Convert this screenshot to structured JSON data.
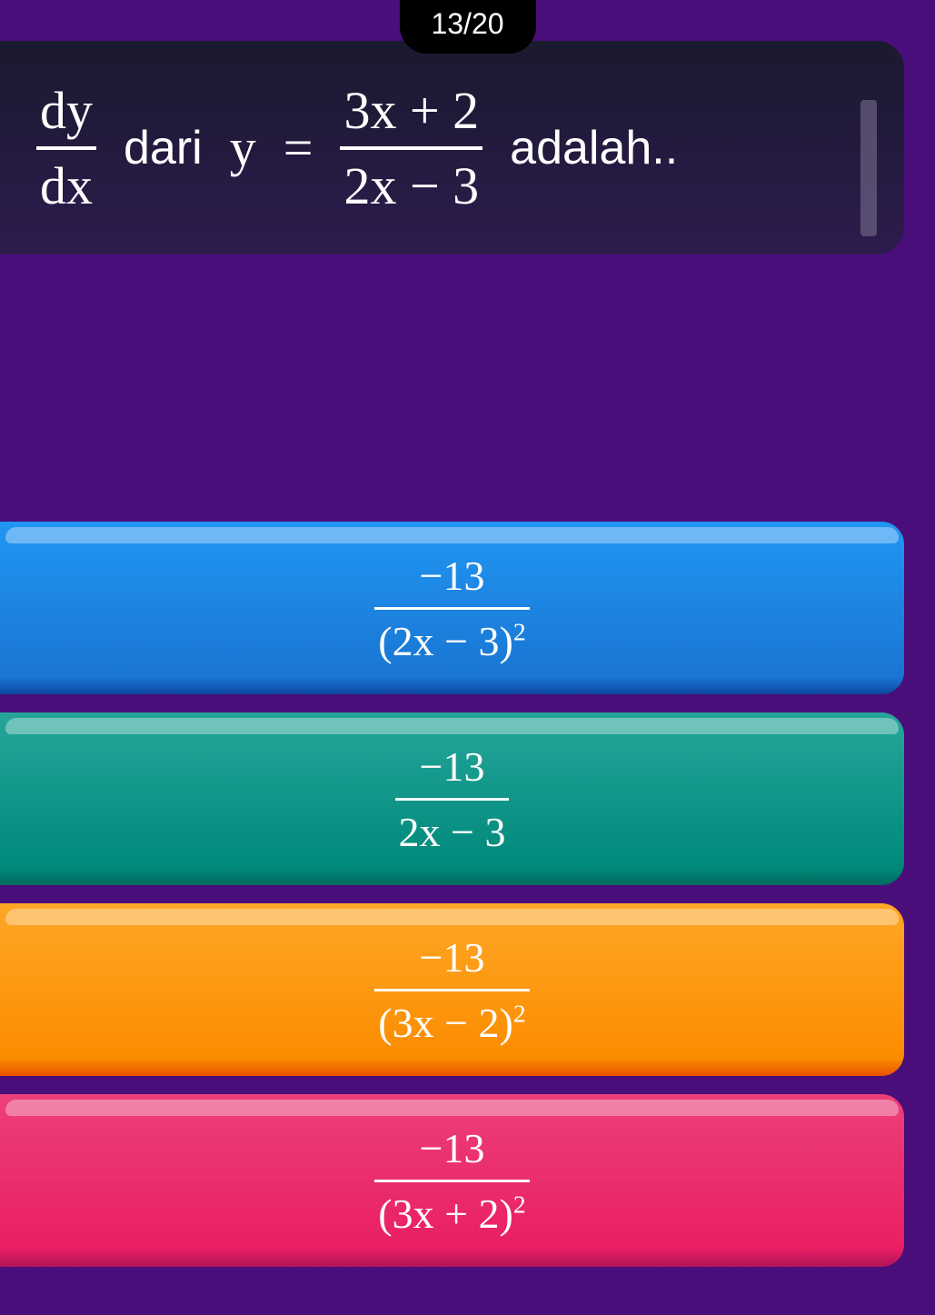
{
  "progress": {
    "current": 13,
    "total": 20,
    "label": "13/20"
  },
  "question": {
    "lhs_num": "dy",
    "lhs_den": "dx",
    "word_dari": "dari",
    "var_y": "y",
    "equals": "=",
    "rhs_num": "3x + 2",
    "rhs_den": "2x − 3",
    "word_adalah": "adalah.."
  },
  "answers": [
    {
      "numerator": "−13",
      "denominator_base": "(2x − 3)",
      "denominator_exp": "2",
      "color_class": "ans-blue"
    },
    {
      "numerator": "−13",
      "denominator_base": "2x − 3",
      "denominator_exp": "",
      "color_class": "ans-teal"
    },
    {
      "numerator": "−13",
      "denominator_base": "(3x − 2)",
      "denominator_exp": "2",
      "color_class": "ans-orange"
    },
    {
      "numerator": "−13",
      "denominator_base": "(3x + 2)",
      "denominator_exp": "2",
      "color_class": "ans-pink"
    }
  ],
  "colors": {
    "background": "#4a0e7a",
    "question_card": "#1a1a2e",
    "pill": "#000000",
    "blue": "#1976d2",
    "teal": "#00897b",
    "orange": "#fb8c00",
    "pink": "#e91e63"
  }
}
